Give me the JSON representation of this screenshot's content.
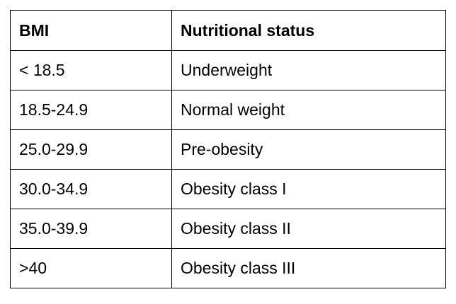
{
  "table": {
    "headers": [
      "BMI",
      "Nutritional status"
    ],
    "rows": [
      [
        "< 18.5",
        "Underweight"
      ],
      [
        "18.5-24.9",
        "Normal weight"
      ],
      [
        "25.0-29.9",
        "Pre-obesity"
      ],
      [
        "30.0-34.9",
        "Obesity class I"
      ],
      [
        "35.0-39.9",
        "Obesity class II"
      ],
      [
        ">40",
        "Obesity class III"
      ]
    ]
  }
}
